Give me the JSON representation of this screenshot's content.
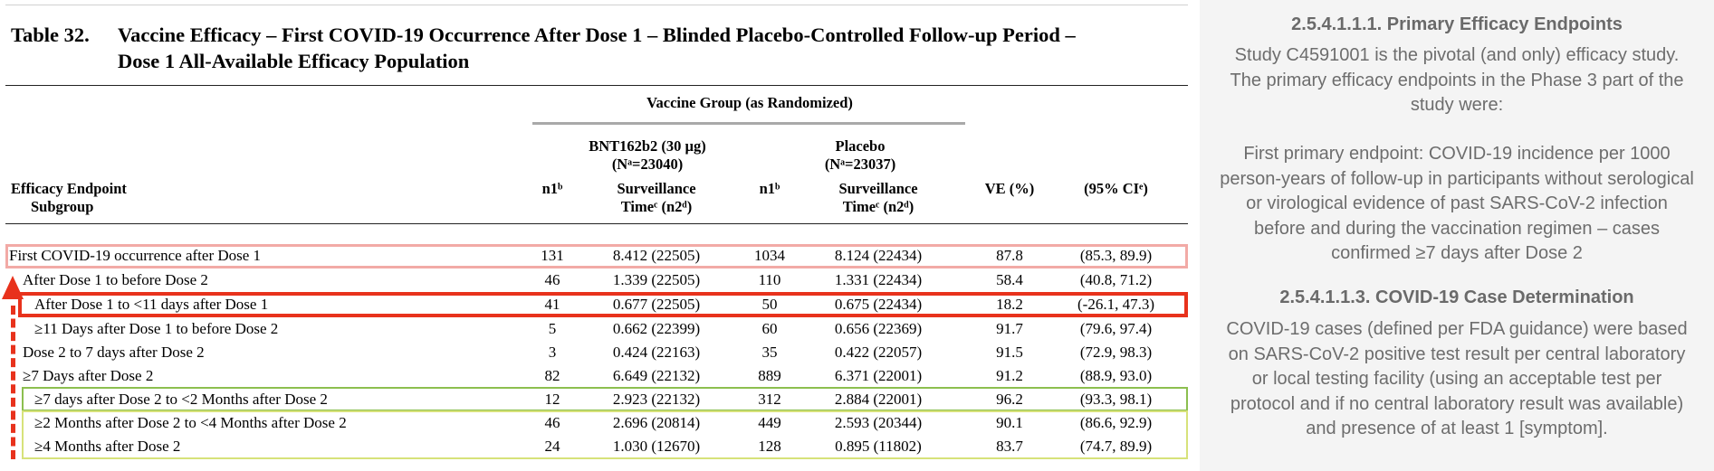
{
  "table": {
    "number": "Table 32.",
    "title_line1": "Vaccine Efficacy – First COVID-19 Occurrence After Dose 1 – Blinded Placebo-Controlled Follow-up Period –",
    "title_line2": "Dose 1 All-Available Efficacy Population",
    "header": {
      "vaccine_group": "Vaccine Group (as Randomized)",
      "bnt_name": "BNT162b2 (30 µg)",
      "bnt_n": "(Nᵃ=23040)",
      "placebo_name": "Placebo",
      "placebo_n": "(Nᵃ=23037)",
      "endpoint": "Efficacy Endpoint",
      "subgroup": "Subgroup",
      "n1": "n1ᵇ",
      "surv_line1": "Surveillance",
      "surv_line2": "Timeᶜ (n2ᵈ)",
      "ve": "VE (%)",
      "ci": "(95% CIᵉ)"
    },
    "rows": [
      {
        "label": "First COVID-19 occurrence after Dose 1",
        "n1_v": "131",
        "surv_v": "8.412 (22505)",
        "n1_p": "1034",
        "surv_p": "8.124 (22434)",
        "ve": "87.8",
        "ci": "(85.3, 89.9)"
      },
      {
        "label": "After Dose 1 to before Dose 2",
        "n1_v": "46",
        "surv_v": "1.339 (22505)",
        "n1_p": "110",
        "surv_p": "1.331 (22434)",
        "ve": "58.4",
        "ci": "(40.8, 71.2)"
      },
      {
        "label": "After Dose 1 to <11 days after Dose 1",
        "n1_v": "41",
        "surv_v": "0.677 (22505)",
        "n1_p": "50",
        "surv_p": "0.675 (22434)",
        "ve": "18.2",
        "ci": "(-26.1, 47.3)"
      },
      {
        "label": "≥11 Days after Dose 1 to before Dose 2",
        "n1_v": "5",
        "surv_v": "0.662 (22399)",
        "n1_p": "60",
        "surv_p": "0.656 (22369)",
        "ve": "91.7",
        "ci": "(79.6, 97.4)"
      },
      {
        "label": "Dose 2 to 7 days after Dose 2",
        "n1_v": "3",
        "surv_v": "0.424 (22163)",
        "n1_p": "35",
        "surv_p": "0.422 (22057)",
        "ve": "91.5",
        "ci": "(72.9, 98.3)"
      },
      {
        "label": "≥7 Days after Dose 2",
        "n1_v": "82",
        "surv_v": "6.649 (22132)",
        "n1_p": "889",
        "surv_p": "6.371 (22001)",
        "ve": "91.2",
        "ci": "(88.9, 93.0)"
      },
      {
        "label": "≥7 days after Dose 2 to <2 Months after Dose 2",
        "n1_v": "12",
        "surv_v": "2.923 (22132)",
        "n1_p": "312",
        "surv_p": "2.884 (22001)",
        "ve": "96.2",
        "ci": "(93.3, 98.1)"
      },
      {
        "label": "≥2 Months after Dose 2 to <4 Months after Dose 2",
        "n1_v": "46",
        "surv_v": "2.696 (20814)",
        "n1_p": "449",
        "surv_p": "2.593 (20344)",
        "ve": "90.1",
        "ci": "(86.6, 92.9)"
      },
      {
        "label": "≥4 Months after Dose 2",
        "n1_v": "24",
        "surv_v": "1.030 (12670)",
        "n1_p": "128",
        "surv_p": "0.895 (11802)",
        "ve": "83.7",
        "ci": "(74.7, 89.9)"
      }
    ]
  },
  "highlights": {
    "pink": "#f2aaa6",
    "red": "#e8321c",
    "green": "#8cbf4f",
    "yellow": "#d7e27a"
  },
  "sidebar": {
    "heading1": "2.5.4.1.1.1. Primary Efficacy Endpoints",
    "para1": "Study C4591001 is the pivotal (and only) efficacy study. The primary efficacy endpoints in the Phase 3 part of the study were:",
    "para2": "First primary endpoint: COVID-19 incidence per 1000 person-years of follow-up in participants without serological or virological evidence of past SARS-CoV-2 infection before and during the vaccination regimen – cases confirmed ≥7 days after Dose 2",
    "heading2": "2.5.4.1.1.3. COVID-19 Case Determination",
    "para3": "COVID-19 cases (defined per FDA guidance) were based on SARS-CoV-2 positive test result per central laboratory or local testing facility (using an acceptable test per protocol and if no central laboratory result was available) and presence of at least 1 [symptom]."
  }
}
